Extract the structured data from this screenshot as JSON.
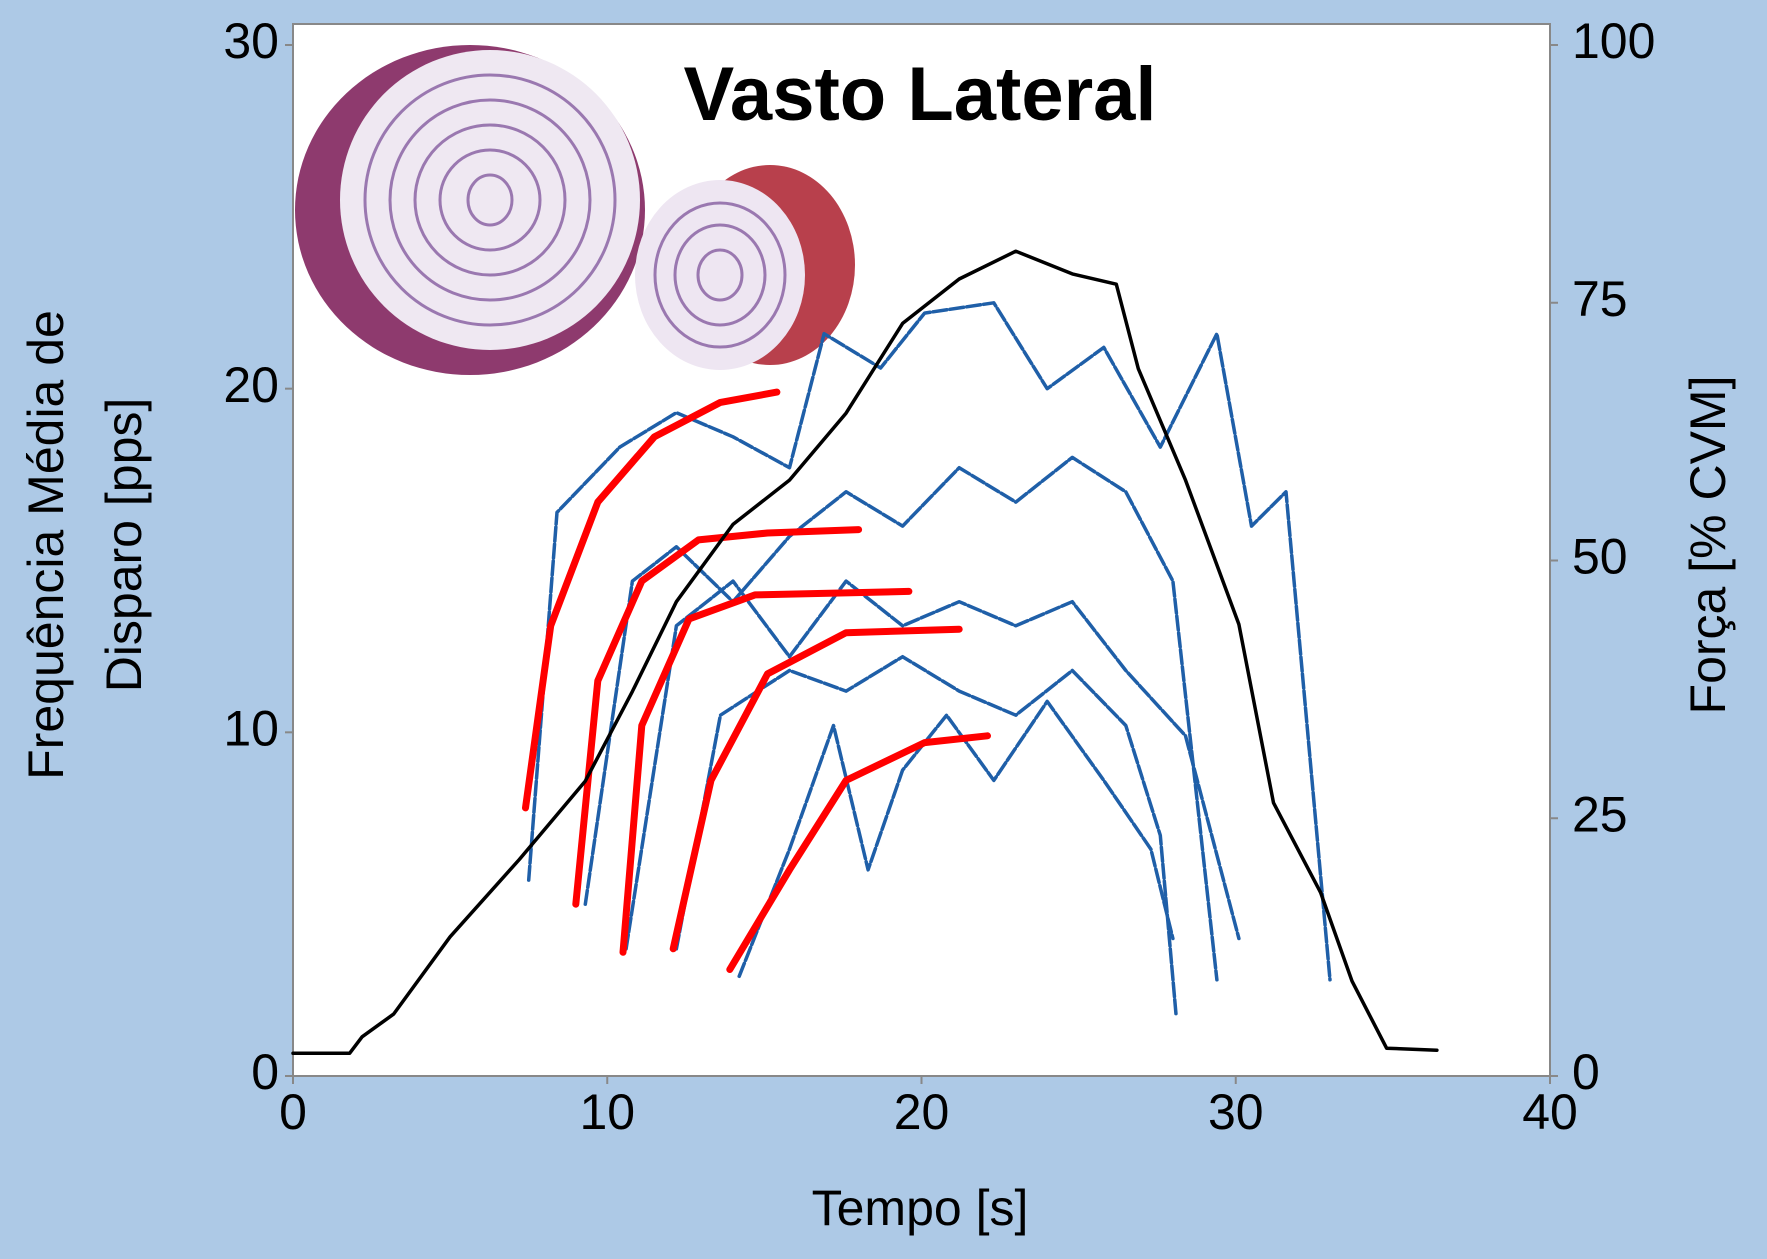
{
  "chart_data": {
    "type": "line",
    "title": "Vasto Lateral",
    "xlabel": "Tempo [s]",
    "ylabel": [
      "Frequência Média de",
      "Disparo [pps]"
    ],
    "y2label": "Força [% CVM]",
    "xlim": [
      0,
      40
    ],
    "xticks": [
      0,
      10,
      20,
      30,
      40
    ],
    "ylim": [
      0,
      30
    ],
    "yticks": [
      0,
      10,
      20,
      30
    ],
    "y2lim": [
      0,
      100
    ],
    "y2ticks": [
      0,
      25,
      50,
      75,
      100
    ],
    "series": [
      {
        "color": "#1f5fa8",
        "x": [
          7.5,
          8.4,
          10.4,
          12.2,
          14,
          15.8,
          16.9,
          18.7,
          20.1,
          22.3,
          24,
          25.8,
          27.6,
          29.4,
          30.5,
          31.6,
          33
        ],
        "values": [
          5.7,
          16.4,
          18.3,
          19.3,
          18.6,
          17.7,
          21.6,
          20.6,
          22.2,
          22.5,
          20,
          21.2,
          18.3,
          21.6,
          16,
          17,
          2.8
        ]
      },
      {
        "color": "#1f5fa8",
        "x": [
          9.3,
          10.8,
          12.2,
          14,
          15.8,
          17.6,
          19.4,
          21.2,
          23,
          24.8,
          26.5,
          28,
          29.4
        ],
        "values": [
          5,
          14.4,
          15.4,
          13.8,
          15.7,
          17,
          16,
          17.7,
          16.7,
          18,
          17,
          14.4,
          2.8
        ]
      },
      {
        "color": "#1f5fa8",
        "x": [
          10.6,
          12.2,
          14,
          15.8,
          17.6,
          19.4,
          21.2,
          23,
          24.8,
          26.5,
          28.4,
          30.1
        ],
        "values": [
          3.7,
          13.1,
          14.4,
          12.2,
          14.4,
          13.1,
          13.8,
          13.1,
          13.8,
          11.8,
          9.9,
          4
        ]
      },
      {
        "color": "#1f5fa8",
        "x": [
          12.2,
          13.6,
          15.8,
          17.6,
          19.4,
          21.2,
          23,
          24.8,
          26.5,
          27.6,
          28.1
        ],
        "values": [
          3.7,
          10.5,
          11.8,
          11.2,
          12.2,
          11.2,
          10.5,
          11.8,
          10.2,
          7,
          1.8
        ]
      },
      {
        "color": "#1f5fa8",
        "x": [
          14.2,
          15.8,
          17.2,
          18.3,
          19.4,
          20.8,
          22.3,
          24,
          25.8,
          27.3,
          28
        ],
        "values": [
          2.9,
          6.6,
          10.2,
          6,
          8.9,
          10.5,
          8.6,
          10.9,
          8.6,
          6.6,
          4
        ]
      },
      {
        "color": "#ff0000",
        "x": [
          7.4,
          8.2,
          9.7,
          11.5,
          13.6,
          15.4
        ],
        "values": [
          7.8,
          13.1,
          16.7,
          18.6,
          19.6,
          19.9
        ]
      },
      {
        "color": "#ff0000",
        "x": [
          9,
          9.7,
          11.1,
          12.9,
          15.1,
          18
        ],
        "values": [
          5,
          11.5,
          14.4,
          15.6,
          15.8,
          15.9
        ]
      },
      {
        "color": "#ff0000",
        "x": [
          10.5,
          11.1,
          12.6,
          14.7,
          19.6
        ],
        "values": [
          3.6,
          10.2,
          13.3,
          14,
          14.1
        ]
      },
      {
        "color": "#ff0000",
        "x": [
          12.1,
          13.3,
          15.1,
          17.6,
          21.2
        ],
        "values": [
          3.7,
          8.6,
          11.7,
          12.9,
          13
        ]
      },
      {
        "color": "#ff0000",
        "x": [
          13.9,
          15.8,
          17.6,
          20.1,
          22.1
        ],
        "values": [
          3.1,
          6,
          8.6,
          9.7,
          9.9
        ]
      },
      {
        "color": "#000000",
        "axis": "y2",
        "x": [
          0,
          1.8,
          2.2,
          3.2,
          5,
          7.2,
          9.3,
          10.8,
          12.2,
          14,
          15.8,
          17.6,
          19.4,
          21.2,
          23,
          24.8,
          26.2,
          26.9,
          28.4,
          30.1,
          31.2,
          32.7,
          33.7,
          34.8,
          36.4
        ],
        "values": [
          2.2,
          2.2,
          3.8,
          6,
          13.5,
          21,
          28.6,
          37.3,
          46,
          53.5,
          57.8,
          64.3,
          73,
          77.3,
          80,
          77.8,
          76.8,
          68.6,
          57.8,
          43.8,
          26.5,
          17.8,
          9.2,
          2.7,
          2.5
        ]
      }
    ]
  }
}
